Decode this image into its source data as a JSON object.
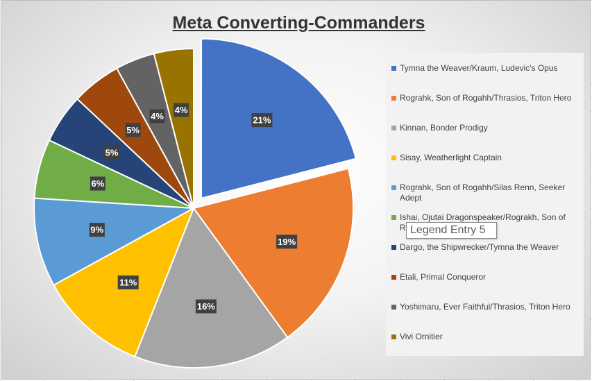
{
  "chart_data": {
    "type": "pie",
    "title": "Meta Converting-Commanders",
    "categories": [
      "Tymna the Weaver/Kraum, Ludevic's Opus",
      "Rograhk, Son of Rogahh/Thrasios, Triton Hero",
      "Kinnan, Bonder Prodigy",
      "Sisay, Weatherlight Captain",
      "Rograhk, Son of Rogahh/Silas Renn, Seeker Adept",
      "Ishai, Ojutai Dragonspeaker/Rograkh, Son of Rogahh",
      "Dargo, the Shipwrecker/Tymna the Weaver",
      "Etali, Primal Conqueror",
      "Yoshimaru, Ever Faithful/Thrasios, Triton Hero",
      "Vivi Ornitier"
    ],
    "values": [
      21,
      19,
      16,
      11,
      9,
      6,
      5,
      5,
      4,
      4
    ],
    "data_labels": [
      "21%",
      "19%",
      "16%",
      "11%",
      "9%",
      "6%",
      "5%",
      "5%",
      "4%",
      "4%"
    ],
    "colors": [
      "#4472C4",
      "#ED7D31",
      "#A5A5A5",
      "#FFC000",
      "#5B9BD5",
      "#70AD47",
      "#264478",
      "#9E480E",
      "#636363",
      "#997300"
    ],
    "exploded": "Tymna the Weaver/Kraum, Ludevic's Opus",
    "legend_position": "right"
  },
  "legend": {
    "items": [
      "Tymna the Weaver/Kraum, Ludevic's Opus",
      "Rograhk, Son of Rogahh/Thrasios, Triton Hero",
      "Kinnan, Bonder Prodigy",
      "Sisay, Weatherlight Captain",
      "Rograhk, Son of Rogahh/Silas Renn, Seeker Adept",
      "Ishai, Ojutai Dragonspeaker/Rograkh, Son of Rogahh",
      "Dargo, the Shipwrecker/Tymna the Weaver",
      "Etali, Primal Conqueror",
      "Yoshimaru, Ever Faithful/Thrasios, Triton Hero",
      "Vivi Ornitier"
    ]
  },
  "tooltip": {
    "text": "Legend Entry 5"
  }
}
